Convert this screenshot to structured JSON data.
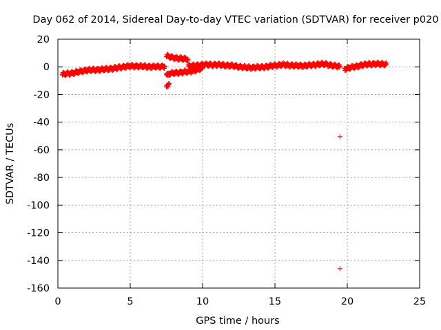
{
  "chart_data": {
    "type": "scatter",
    "title": "Day 062 of 2014, Sidereal Day-to-day VTEC variation (SDTVAR) for receiver p020",
    "xlabel": "GPS time / hours",
    "ylabel": "SDTVAR / TECUs",
    "xlim": [
      0,
      25
    ],
    "ylim": [
      -160,
      20
    ],
    "xticks": [
      0,
      5,
      10,
      15,
      20,
      25
    ],
    "yticks": [
      -160,
      -140,
      -120,
      -100,
      -80,
      -60,
      -40,
      -20,
      0,
      20
    ],
    "grid": true,
    "marker": "+",
    "colors": {
      "series": "#ff0000",
      "grid": "#a0a0a0",
      "axis": "#000000"
    },
    "series": [
      {
        "name": "SDTVAR",
        "segments": [
          {
            "x": [
              0.3,
              0.6,
              1.0,
              1.5,
              1.9,
              2.3,
              3.0,
              3.5,
              4.0,
              4.5,
              5.0,
              5.5,
              6.0,
              6.5,
              7.0,
              7.4
            ],
            "y": [
              -5.5,
              -5,
              -4.5,
              -3.5,
              -2.5,
              -2.3,
              -2,
              -1.5,
              -1,
              0,
              0.5,
              0.5,
              0.3,
              0,
              0.2,
              0.3
            ]
          },
          {
            "x": [
              7.5,
              7.8,
              8.1,
              8.4,
              8.7,
              9.0
            ],
            "y": [
              8,
              7,
              6.5,
              6,
              5.8,
              5.5
            ]
          },
          {
            "x": [
              7.5,
              7.7,
              8.0,
              8.5,
              9.0,
              9.5,
              10.0
            ],
            "y": [
              -6,
              -5,
              -4.5,
              -4,
              -3.5,
              -2.5,
              -1
            ]
          },
          {
            "x": [
              7.5,
              7.7
            ],
            "y": [
              -14,
              -12
            ]
          },
          {
            "x": [
              9.0,
              9.5,
              10.0,
              10.5,
              11.0,
              11.5,
              12.0,
              12.5,
              13.0,
              13.5,
              14.0,
              14.5,
              15.0,
              15.5,
              16.0,
              16.5,
              17.0,
              17.5,
              18.0,
              18.5,
              19.0,
              19.5
            ],
            "y": [
              0.5,
              0.8,
              1.5,
              1.5,
              1.5,
              1.2,
              0.8,
              0.2,
              -0.5,
              -0.5,
              -0.3,
              0.2,
              1,
              1.5,
              1.2,
              0.8,
              0.8,
              1.2,
              1.8,
              2,
              0.8,
              0.2
            ]
          },
          {
            "x": [
              19.8,
              20.0,
              20.5,
              21.0,
              21.5,
              22.0,
              22.5,
              22.7
            ],
            "y": [
              -1.5,
              -1,
              0,
              1.2,
              2,
              2,
              2,
              2
            ]
          },
          {
            "x": [
              19.5
            ],
            "y": [
              -50.5
            ]
          },
          {
            "x": [
              19.5
            ],
            "y": [
              -146
            ]
          }
        ]
      }
    ]
  }
}
